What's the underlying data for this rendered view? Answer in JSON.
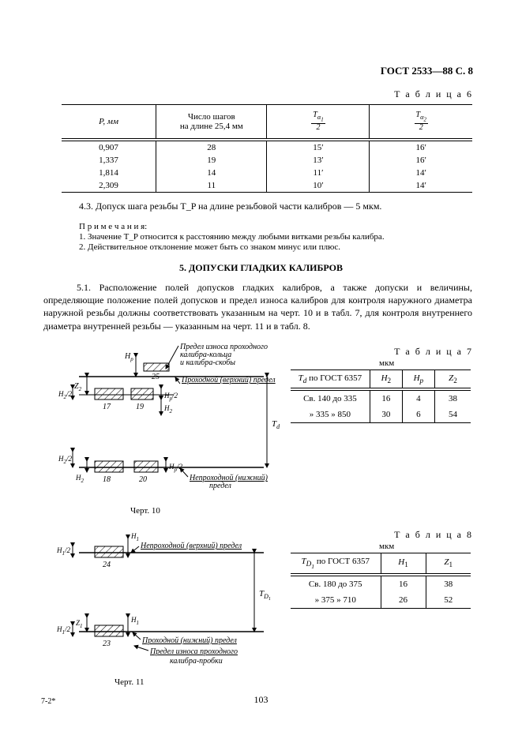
{
  "header": {
    "title": "ГОСТ 2533—88 С. 8"
  },
  "table6": {
    "label": "Т а б л и ц а  6",
    "cols": [
      "P, мм",
      "Число шагов\nна длине 25,4 мм",
      "Tα1 / 2",
      "Tα2 / 2"
    ],
    "rows": [
      [
        "0,907",
        "28",
        "15′",
        "16′"
      ],
      [
        "1,337",
        "19",
        "13′",
        "16′"
      ],
      [
        "1,814",
        "14",
        "11′",
        "14′"
      ],
      [
        "2,309",
        "11",
        "10′",
        "14′"
      ]
    ]
  },
  "para43": "4.3. Допуск шага резьбы Т_P на длине резьбовой части калибров — 5 мкм.",
  "notes_label": "П р и м е ч а н и я:",
  "notes": [
    "1. Значение Т_P относится к расстоянию между любыми витками резьбы калибра.",
    "2. Действительное отклонение может быть со знаком минус или плюс."
  ],
  "section5": "5. ДОПУСКИ ГЛАДКИХ КАЛИБРОВ",
  "para51": "5.1. Расположение полей допусков гладких калибров, а также допуски и величины, определяющие положение полей допусков и предел износа калибров для контроля наружного диаметра наружной резьбы должны соответствовать указанным на черт. 10 и в табл. 7, для контроля внутреннего диаметра внутренней резьбы — указанным на черт. 11 и в табл. 8.",
  "table7": {
    "label": "Т а б л и ц а  7",
    "unit": "мкм",
    "cols": [
      "T_d по ГОСТ 6357",
      "H_2",
      "H_p",
      "Z_2"
    ],
    "rows": [
      [
        "Св. 140 до 335",
        "16",
        "4",
        "38"
      ],
      [
        "»  335  »  850",
        "30",
        "6",
        "54"
      ]
    ]
  },
  "table8": {
    "label": "Т а б л и ц а  8",
    "unit": "мкм",
    "cols": [
      "T_D1 по ГОСТ 6357",
      "H_1",
      "Z_1"
    ],
    "rows": [
      [
        "Св. 180 до 375",
        "16",
        "38"
      ],
      [
        "»  375  »  710",
        "26",
        "52"
      ]
    ]
  },
  "fig10": {
    "caption": "Черт. 10",
    "labels": {
      "top1": "Предел износа проходного",
      "top2": "калибра-кольца",
      "top3": "и калибра-скобы",
      "pass": "Проходной (верхний) предел",
      "nogo": "Непроходной (нижний)",
      "nogo2": "предел",
      "n17": "17",
      "n18": "18",
      "n19": "19",
      "n20": "20",
      "n25": "25",
      "Td": "T_d",
      "Z2": "Z_2",
      "Hp": "H_p",
      "H2": "H_2",
      "H2_2": "H_2/2",
      "Hp2": "H_p/2"
    }
  },
  "fig11": {
    "caption": "Черт. 11",
    "labels": {
      "nogo": "Непроходной (верхний) предел",
      "pass": "Проходной (нижний) предел",
      "wear1": "Предел износа проходного",
      "wear2": "калибра-пробки",
      "n23": "23",
      "n24": "24",
      "Td": "T_D1",
      "Z1": "Z_1",
      "H1": "H_1",
      "H12": "H_1/2"
    }
  },
  "footer": {
    "page": "103",
    "corner": "7-2*"
  }
}
